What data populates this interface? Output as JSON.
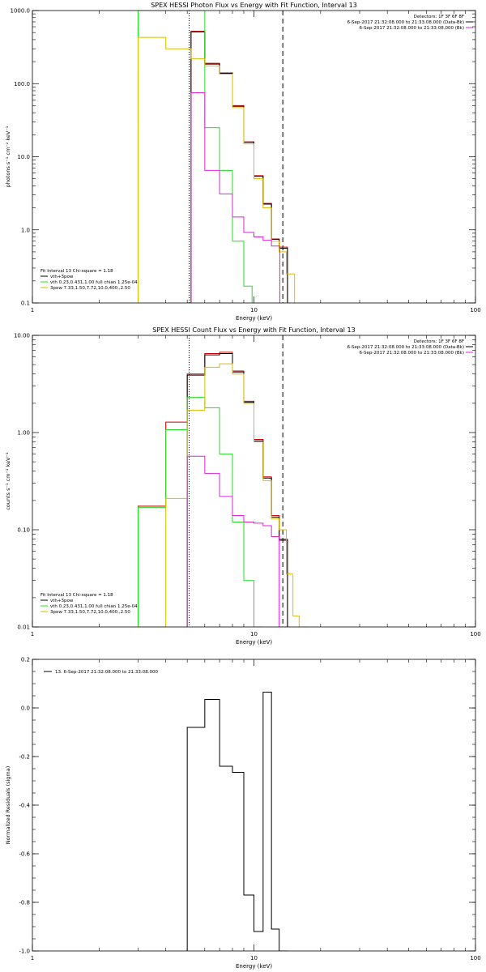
{
  "colors": {
    "total": "#000000",
    "sum": "#cc0000",
    "vth": "#22dd22",
    "bpow": "#ddbb00",
    "data": "#dd22dd"
  },
  "chart_data": [
    {
      "type": "line",
      "title": "SPEX HESSI Photon Flux vs Energy with Fit Function, Interval 13",
      "xlabel": "Energy (keV)",
      "ylabel": "photons s⁻¹ cm⁻² keV⁻¹",
      "xscale": "log",
      "yscale": "log",
      "xlim": [
        1,
        100
      ],
      "ylim": [
        0.1,
        1000
      ],
      "xticks": [
        {
          "v": 1,
          "label": "1"
        },
        {
          "v": 10,
          "label": "10"
        },
        {
          "v": 100,
          "label": "100"
        }
      ],
      "yticks": [
        {
          "v": 0.1,
          "label": "0.1"
        },
        {
          "v": 1,
          "label": "1.0"
        },
        {
          "v": 10,
          "label": "10.0"
        },
        {
          "v": 100,
          "label": "100.0"
        },
        {
          "v": 1000,
          "label": "1000.0"
        }
      ],
      "vlines": [
        {
          "x": 5.1,
          "style": "dotted"
        },
        {
          "x": 13.5,
          "style": "dashed"
        }
      ],
      "info_lines": [
        "Detectors: 1F 3F 6F 8F",
        "6-Sep-2017 21:32:08.000 to 21:33:08.000 (Data-Bk)",
        "6-Sep-2017 21:32:08.000 to 21:33:08.000 (Bk)"
      ],
      "legend": [
        "Fit Interval 13   Chi-square = 1.18",
        "vth+3pow",
        "vth 0.23,0.431,1.00  full chian 1.25e-04",
        "3pow 7.33,1.50,7.72,10.0,400.,2.50"
      ],
      "series": [
        {
          "name": "vth+3pow",
          "color": "#cc0000",
          "x": [
            5.2,
            6.0,
            7.0,
            8.0,
            9.0,
            10.0,
            11.0,
            12.0,
            13.0
          ],
          "y": [
            520,
            190,
            140,
            50,
            16,
            5.5,
            2.3,
            0.75,
            0.58
          ]
        },
        {
          "name": "",
          "color": "#000000",
          "x": [
            5.2,
            6.0,
            7.0,
            8.0,
            9.0,
            10.0,
            11.0,
            12.0,
            13.0
          ],
          "y": [
            510,
            185,
            138,
            49,
            15.8,
            5.4,
            2.25,
            0.74,
            0.56
          ]
        },
        {
          "name": "vth 0.23,0.431,1.00  full chian 1.25e-04",
          "color": "#22dd22",
          "x": [
            3.0,
            4.0,
            5.0,
            6.0,
            7.0,
            8.0,
            9.0
          ],
          "y": [
            1000,
            1000,
            1000,
            25,
            6.5,
            0.7,
            0.17
          ]
        },
        {
          "name": "3pow 7.33,1.50,7.72,10.0,400.,2.50",
          "color": "#ddbb00",
          "x": [
            3.0,
            4.0,
            5.2,
            6.0,
            7.0,
            8.0,
            9.0,
            10.0,
            11.0,
            12.0,
            13.0,
            14.0
          ],
          "y": [
            430,
            300,
            220,
            175,
            135,
            47,
            15,
            5,
            2,
            0.7,
            0.5,
            0.25
          ]
        },
        {
          "name": "6-Sep-2017 21:32:08.000 to 21:33:08.000 (Bk)",
          "color": "#dd22dd",
          "x": [
            5.2,
            6.0,
            7.0,
            8.0,
            9.0,
            10.0,
            11.0,
            12.0
          ],
          "y": [
            75,
            6.5,
            3.1,
            1.5,
            0.92,
            0.8,
            0.72,
            0.6
          ]
        }
      ]
    },
    {
      "type": "line",
      "title": "SPEX HESSI Count Flux vs Energy with Fit Function, Interval 13",
      "xlabel": "Energy (keV)",
      "ylabel": "counts s⁻¹ cm⁻² keV⁻¹",
      "xscale": "log",
      "yscale": "log",
      "xlim": [
        1,
        100
      ],
      "ylim": [
        0.01,
        10
      ],
      "xticks": [
        {
          "v": 1,
          "label": "1"
        },
        {
          "v": 10,
          "label": "10"
        },
        {
          "v": 100,
          "label": "100"
        }
      ],
      "yticks": [
        {
          "v": 0.01,
          "label": "0.01"
        },
        {
          "v": 0.1,
          "label": "0.10"
        },
        {
          "v": 1,
          "label": "1.00"
        },
        {
          "v": 10,
          "label": "10.00"
        }
      ],
      "vlines": [
        {
          "x": 5.1,
          "style": "dotted"
        },
        {
          "x": 13.5,
          "style": "dashed"
        }
      ],
      "info_lines": [
        "Detectors: 1F 3F 6F 8F",
        "6-Sep-2017 21:32:08.000 to 21:33:08.000 (Data-Bk)",
        "6-Sep-2017 21:32:08.000 to 21:33:08.000 (Bk)"
      ],
      "legend": [
        "Fit Interval 13   Chi-square = 1.18",
        "vth+3pow",
        "vth 0.23,0.431,1.00  full chian 1.25e-04",
        "3pow 7.33,1.50,7.72,10.0,400.,2.50"
      ],
      "series": [
        {
          "name": "vth+3pow",
          "color": "#cc0000",
          "x": [
            3.0,
            4.0,
            5.0,
            6.0,
            7.0,
            8.0,
            9.0,
            10.0,
            11.0,
            12.0,
            13.0
          ],
          "y": [
            0.175,
            1.28,
            4.0,
            6.5,
            6.7,
            4.3,
            2.1,
            0.85,
            0.35,
            0.14,
            0.08
          ]
        },
        {
          "name": "",
          "color": "#000000",
          "x": [
            5.0,
            6.0,
            7.0,
            8.0,
            9.0,
            10.0,
            11.0,
            12.0,
            13.0
          ],
          "y": [
            3.9,
            6.3,
            6.5,
            4.2,
            2.05,
            0.82,
            0.34,
            0.135,
            0.078
          ]
        },
        {
          "name": "vth 0.23,0.431,1.00  full chian 1.25e-04",
          "color": "#22dd22",
          "x": [
            3.0,
            4.0,
            5.0,
            6.0,
            7.0,
            8.0,
            9.0,
            10.0
          ],
          "y": [
            0.17,
            1.07,
            2.3,
            1.8,
            0.6,
            0.12,
            0.03,
            0.01
          ]
        },
        {
          "name": "3pow 7.33,1.50,7.72,10.0,400.,2.50",
          "color": "#ddbb00",
          "x": [
            3.0,
            4.0,
            5.0,
            6.0,
            7.0,
            8.0,
            9.0,
            10.0,
            11.0,
            12.0,
            13.0,
            14.0,
            15.0,
            16.0
          ],
          "y": [
            0.01,
            0.21,
            1.7,
            4.7,
            5.1,
            4.0,
            2.0,
            0.8,
            0.32,
            0.13,
            0.1,
            0.035,
            0.013,
            0.01
          ]
        },
        {
          "name": "6-Sep-2017 21:32:08.000 to 21:33:08.000 (Bk)",
          "color": "#dd22dd",
          "x": [
            5.0,
            6.0,
            7.0,
            8.0,
            9.0,
            10.0,
            11.0,
            12.0,
            13.0
          ],
          "y": [
            0.57,
            0.38,
            0.22,
            0.14,
            0.12,
            0.117,
            0.11,
            0.085,
            0.01
          ]
        }
      ]
    },
    {
      "type": "line",
      "title": "",
      "xlabel": "Energy (keV)",
      "ylabel": "Normalized Residuals (sigma)",
      "xscale": "log",
      "yscale": "linear",
      "xlim": [
        1,
        100
      ],
      "ylim": [
        -1.0,
        0.2
      ],
      "xticks": [
        {
          "v": 1,
          "label": "1"
        },
        {
          "v": 10,
          "label": "10"
        },
        {
          "v": 100,
          "label": "100"
        }
      ],
      "yticks": [
        {
          "v": -1.0,
          "label": "-1.0"
        },
        {
          "v": -0.8,
          "label": "-0.8"
        },
        {
          "v": -0.6,
          "label": "-0.6"
        },
        {
          "v": -0.4,
          "label": "-0.4"
        },
        {
          "v": -0.2,
          "label": "-0.2"
        },
        {
          "v": 0.0,
          "label": "0.0"
        },
        {
          "v": 0.2,
          "label": "0.2"
        }
      ],
      "legend": [
        "13.  6-Sep-2017 21:32:08.000 to 21:33:08.000"
      ],
      "series": [
        {
          "name": "13.  6-Sep-2017 21:32:08.000 to 21:33:08.000",
          "color": "#000000",
          "x": [
            5.0,
            6.0,
            7.0,
            8.0,
            9.0,
            10.0,
            11.0,
            12.0,
            13.0
          ],
          "y": [
            -0.08,
            0.035,
            -0.24,
            -0.265,
            -0.77,
            -0.92,
            0.065,
            -0.91,
            -1.0
          ]
        }
      ]
    }
  ]
}
